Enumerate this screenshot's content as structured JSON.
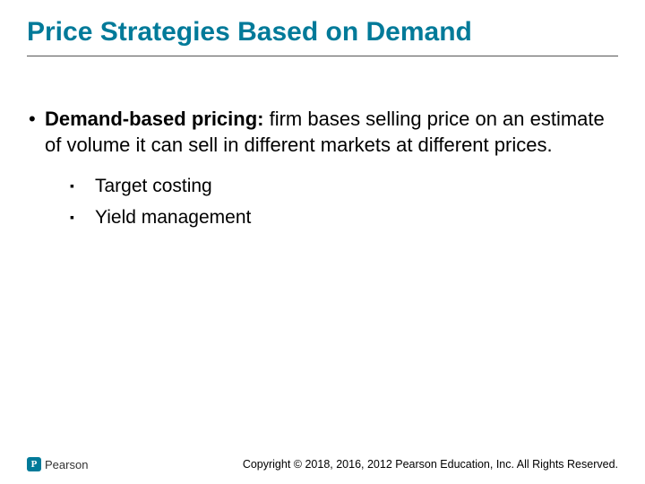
{
  "colors": {
    "title": "#007a99",
    "text": "#000000",
    "background": "#ffffff",
    "logo_badge": "#007a99",
    "rule": "#555555"
  },
  "typography": {
    "title_fontsize": 30,
    "body_fontsize": 22,
    "sub_fontsize": 21,
    "footer_fontsize": 12.5,
    "font_family": "Arial"
  },
  "title": "Price Strategies Based on Demand",
  "bullets": [
    {
      "bold_lead": "Demand-based pricing:",
      "rest": " firm bases selling price on an estimate of volume it can sell in different markets at different prices.",
      "subitems": [
        "Target costing",
        "Yield management"
      ]
    }
  ],
  "logo": {
    "badge_letter": "P",
    "brand": "Pearson"
  },
  "copyright": "Copyright © 2018, 2016, 2012 Pearson Education, Inc. All Rights Reserved."
}
